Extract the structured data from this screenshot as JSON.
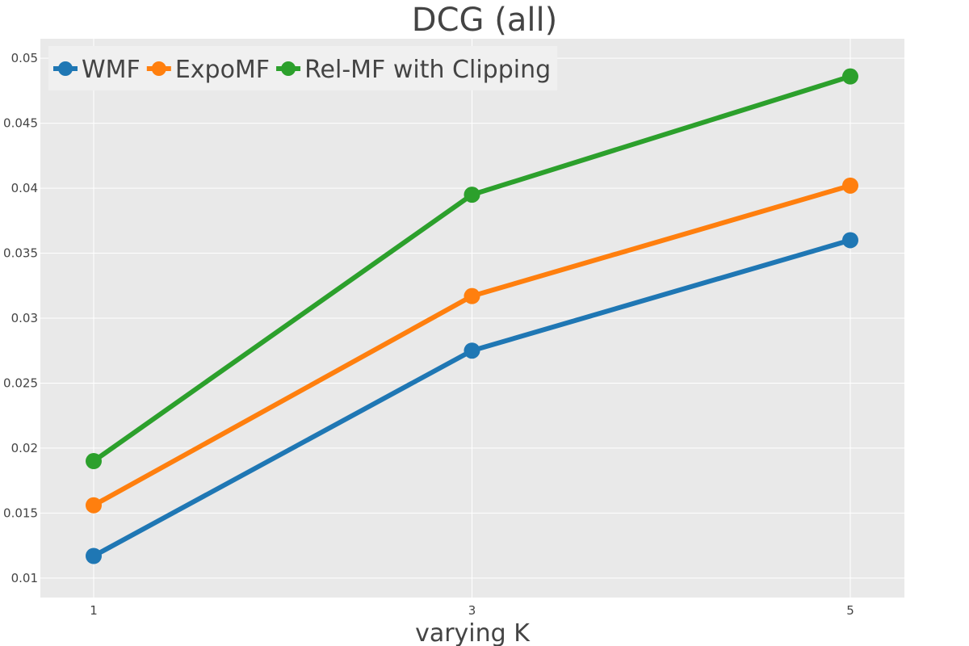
{
  "chart_data": {
    "type": "line",
    "title": "DCG (all)",
    "xlabel": "varying K",
    "ylabel": "",
    "x": [
      1,
      3,
      5
    ],
    "x_tick_labels": [
      "1",
      "3",
      "5"
    ],
    "ylim": [
      0.0085,
      0.0515
    ],
    "y_ticks": [
      0.01,
      0.015,
      0.02,
      0.025,
      0.03,
      0.035,
      0.04,
      0.045,
      0.05
    ],
    "y_tick_labels": [
      "0.01",
      "0.015",
      "0.02",
      "0.025",
      "0.03",
      "0.035",
      "0.04",
      "0.045",
      "0.05"
    ],
    "grid": true,
    "legend_position": "top-left",
    "series": [
      {
        "name": "WMF",
        "color": "#1f77b4",
        "values": [
          0.0117,
          0.0275,
          0.036
        ]
      },
      {
        "name": "ExpoMF",
        "color": "#ff7f0e",
        "values": [
          0.0156,
          0.0317,
          0.0402
        ]
      },
      {
        "name": "Rel-MF with Clipping",
        "color": "#2ca02c",
        "values": [
          0.019,
          0.0395,
          0.0486
        ]
      }
    ],
    "colors": {
      "plot_background": "#e9e9e9",
      "grid": "#ffffff",
      "legend_background": "#f0f0f0",
      "text": "#444444"
    }
  }
}
